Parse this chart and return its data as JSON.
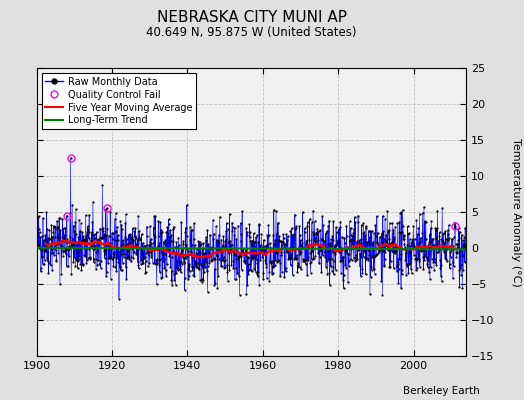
{
  "title": "NEBRASKA CITY MUNI AP",
  "subtitle": "40.649 N, 95.875 W (United States)",
  "ylabel": "Temperature Anomaly (°C)",
  "watermark": "Berkeley Earth",
  "xlim": [
    1900,
    2014
  ],
  "ylim": [
    -15,
    25
  ],
  "yticks": [
    -15,
    -10,
    -5,
    0,
    5,
    10,
    15,
    20,
    25
  ],
  "xticks": [
    1900,
    1920,
    1940,
    1960,
    1980,
    2000
  ],
  "bg_color": "#e0e0e0",
  "plot_bg_color": "#f0f0f0",
  "seed": 42,
  "start_year": 1900,
  "end_year": 2014,
  "months_per_year": 12,
  "moving_avg_window": 60,
  "title_fontsize": 11,
  "subtitle_fontsize": 8.5,
  "tick_fontsize": 8,
  "ylabel_fontsize": 8,
  "legend_fontsize": 7,
  "watermark_fontsize": 7.5
}
